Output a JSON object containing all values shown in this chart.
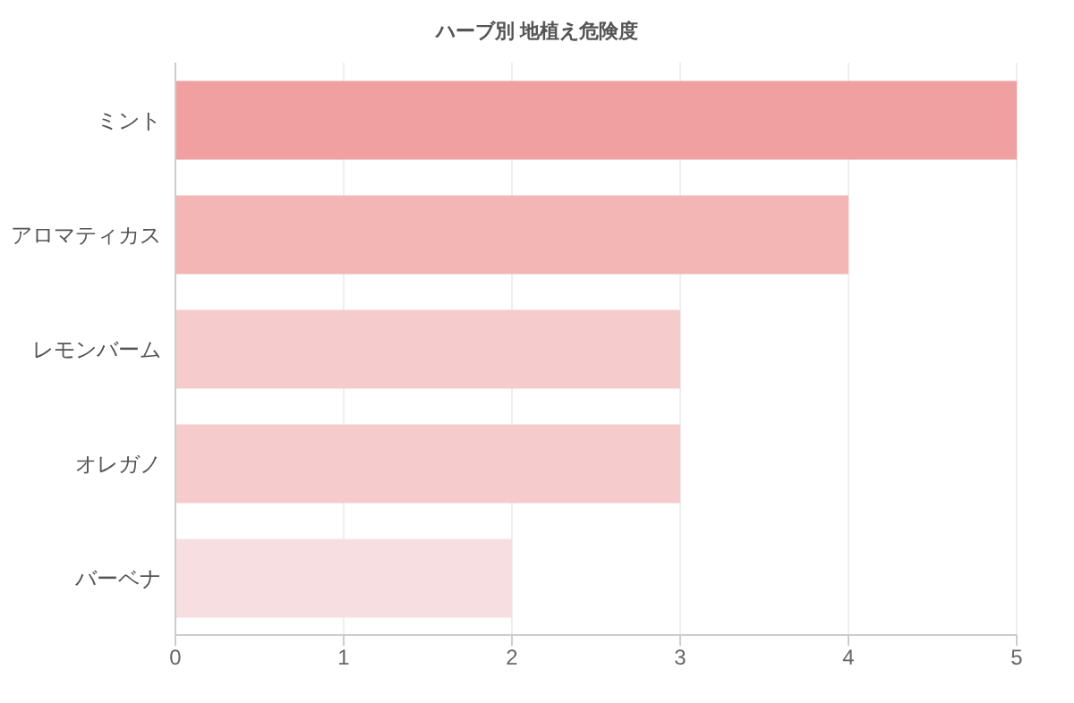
{
  "chart_data": {
    "type": "bar",
    "orientation": "horizontal",
    "title": "ハーブ別 地植え危険度",
    "categories": [
      "ミント",
      "アロマティカス",
      "レモンバーム",
      "オレガノ",
      "バーベナ"
    ],
    "values": [
      5,
      4,
      3,
      3,
      2
    ],
    "colors": [
      "#f0a0a0",
      "#f4b5b5",
      "#f5cbcb",
      "#f5cbcb",
      "#f7dfe1"
    ],
    "xlim": [
      0,
      5
    ],
    "xticks": [
      0,
      1,
      2,
      3,
      4,
      5
    ],
    "grid": "x"
  }
}
